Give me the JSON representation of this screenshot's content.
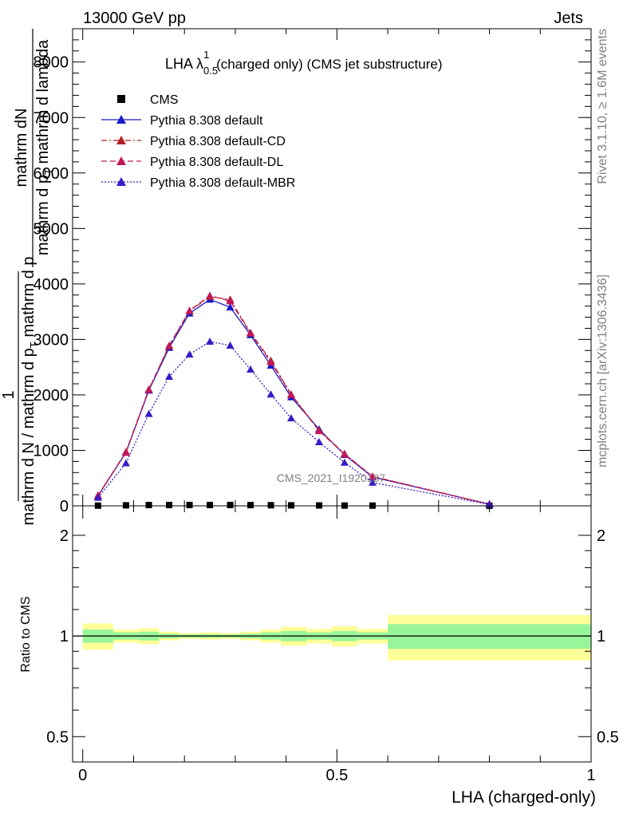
{
  "header": {
    "left": "13000 GeV pp",
    "right": "Jets"
  },
  "side_text": {
    "rivet": "Rivet 3.1.10, ≥ 1.6M events",
    "mcplots": "mcplots.cern.ch [arXiv:1306.3436]"
  },
  "chart_data": [
    {
      "type": "line",
      "title_main": "LHA λ",
      "title_sup": "1",
      "title_sub": "0.5",
      "title_rest": " (charged only) (CMS jet substructure)",
      "watermark": "CMS_2021_I1920187",
      "ylabel_num": "mathrm dN",
      "ylabel_den": "mathrm d p",
      "ylabel_den_sub": "T",
      "ylabel_den_rest": " mathrm d lambda",
      "ylabel2_num": "1",
      "ylabel2_den": "mathrm d N / mathrm d p",
      "ylabel2_den_sub": "T",
      "ylabel2_den_rest": " mathrm d p",
      "ylim": [
        0,
        8600
      ],
      "xlim": [
        -0.02,
        1.0
      ],
      "yticks": [
        0,
        1000,
        2000,
        3000,
        4000,
        5000,
        6000,
        7000,
        8000
      ],
      "ytick_labels": [
        "0",
        "1000",
        "2000",
        "3000",
        "4000",
        "5000",
        "6000",
        "7000",
        "8000"
      ],
      "x": [
        0.03,
        0.085,
        0.13,
        0.17,
        0.21,
        0.25,
        0.29,
        0.33,
        0.37,
        0.41,
        0.465,
        0.515,
        0.57,
        0.8
      ],
      "series": [
        {
          "name": "CMS",
          "style": "data",
          "color": "#000000",
          "values": [
            4,
            9,
            14,
            15,
            15,
            15,
            15,
            13,
            11,
            9,
            7,
            5,
            4,
            1
          ]
        },
        {
          "name": "Pythia 8.308 default",
          "style": "solid",
          "color": "#1a1ac8",
          "values": [
            180,
            960,
            2080,
            2850,
            3470,
            3720,
            3580,
            3080,
            2530,
            1960,
            1380,
            920,
            520,
            30
          ]
        },
        {
          "name": "Pythia 8.308 default-CD",
          "style": "dashdot",
          "color": "#b22222",
          "values": [
            185,
            975,
            2100,
            2880,
            3510,
            3770,
            3720,
            3120,
            2620,
            2010,
            1360,
            940,
            530,
            30
          ]
        },
        {
          "name": "Pythia 8.308 default-DL",
          "style": "dashed",
          "color": "#c2185b",
          "values": [
            190,
            960,
            2090,
            2890,
            3520,
            3790,
            3690,
            3110,
            2590,
            2000,
            1350,
            930,
            530,
            30
          ]
        },
        {
          "name": "Pythia 8.308 default-MBR",
          "style": "dotted",
          "color": "#3a1ac8",
          "values": [
            150,
            770,
            1660,
            2330,
            2730,
            2960,
            2890,
            2460,
            2010,
            1580,
            1150,
            780,
            420,
            25
          ]
        }
      ]
    },
    {
      "type": "area",
      "ylabel": "Ratio to CMS",
      "xlabel": "LHA (charged-only)",
      "log_scale_y": true,
      "ylim": [
        0.42,
        2.45
      ],
      "xlim": [
        -0.02,
        1.0
      ],
      "yticks": [
        0.5,
        1,
        2
      ],
      "ytick_labels": [
        "0.5",
        "1",
        "2"
      ],
      "xticks": [
        0,
        0.5,
        1
      ],
      "xtick_labels": [
        "0",
        "0.5",
        "1"
      ],
      "bins": [
        {
          "x0": 0.0,
          "x1": 0.06,
          "inner": [
            0.955,
            1.045
          ],
          "outer": [
            0.91,
            1.09
          ]
        },
        {
          "x0": 0.06,
          "x1": 0.11,
          "inner": [
            0.975,
            1.025
          ],
          "outer": [
            0.955,
            1.045
          ]
        },
        {
          "x0": 0.11,
          "x1": 0.15,
          "inner": [
            0.97,
            1.03
          ],
          "outer": [
            0.945,
            1.055
          ]
        },
        {
          "x0": 0.15,
          "x1": 0.19,
          "inner": [
            0.985,
            1.015
          ],
          "outer": [
            0.97,
            1.03
          ]
        },
        {
          "x0": 0.19,
          "x1": 0.23,
          "inner": [
            0.99,
            1.01
          ],
          "outer": [
            0.98,
            1.02
          ]
        },
        {
          "x0": 0.23,
          "x1": 0.27,
          "inner": [
            0.988,
            1.012
          ],
          "outer": [
            0.975,
            1.025
          ]
        },
        {
          "x0": 0.27,
          "x1": 0.31,
          "inner": [
            0.99,
            1.01
          ],
          "outer": [
            0.98,
            1.02
          ]
        },
        {
          "x0": 0.31,
          "x1": 0.35,
          "inner": [
            0.985,
            1.015
          ],
          "outer": [
            0.97,
            1.03
          ]
        },
        {
          "x0": 0.35,
          "x1": 0.39,
          "inner": [
            0.975,
            1.025
          ],
          "outer": [
            0.955,
            1.045
          ]
        },
        {
          "x0": 0.39,
          "x1": 0.44,
          "inner": [
            0.965,
            1.035
          ],
          "outer": [
            0.935,
            1.065
          ]
        },
        {
          "x0": 0.44,
          "x1": 0.49,
          "inner": [
            0.975,
            1.025
          ],
          "outer": [
            0.95,
            1.05
          ]
        },
        {
          "x0": 0.49,
          "x1": 0.54,
          "inner": [
            0.965,
            1.035
          ],
          "outer": [
            0.93,
            1.07
          ]
        },
        {
          "x0": 0.54,
          "x1": 0.6,
          "inner": [
            0.975,
            1.025
          ],
          "outer": [
            0.95,
            1.05
          ]
        },
        {
          "x0": 0.6,
          "x1": 1.0,
          "inner": [
            0.915,
            1.085
          ],
          "outer": [
            0.845,
            1.155
          ]
        }
      ],
      "band_colors": {
        "inner": "#99f599",
        "outer": "#ffff99"
      },
      "reference_line": 1
    }
  ]
}
